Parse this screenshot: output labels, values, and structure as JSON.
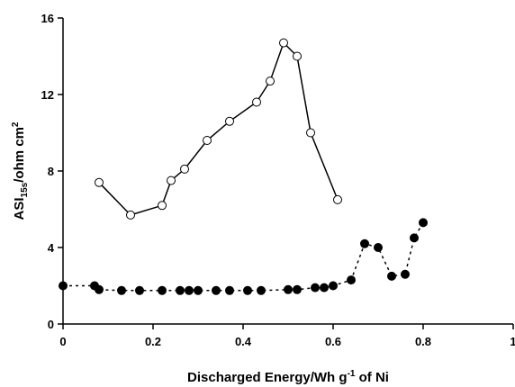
{
  "chart_data": {
    "type": "line",
    "xlabel": {
      "prefix": "Discharged Energy/Wh g",
      "superscript": "-1",
      "suffix": " of Ni"
    },
    "ylabel": {
      "prefix": "ASI",
      "subscript": "15s",
      "middle": "/ohm cm",
      "superscript": "2"
    },
    "xlim": [
      0,
      1
    ],
    "ylim": [
      0,
      16
    ],
    "x_ticks": [
      0,
      0.2,
      0.4,
      0.6,
      0.8,
      1
    ],
    "x_tick_labels": [
      "0",
      "0.2",
      "0.4",
      "0.6",
      "0.8",
      "1"
    ],
    "y_ticks": [
      0,
      4,
      8,
      12,
      16
    ],
    "y_tick_labels": [
      "0",
      "4",
      "8",
      "12",
      "16"
    ],
    "grid": false,
    "series": [
      {
        "marker": "open-circle",
        "line": "solid",
        "x": [
          0.08,
          0.15,
          0.22,
          0.24,
          0.27,
          0.32,
          0.37,
          0.43,
          0.46,
          0.49,
          0.52,
          0.55,
          0.61
        ],
        "y": [
          7.4,
          5.7,
          6.2,
          7.5,
          8.1,
          9.6,
          10.6,
          11.6,
          12.7,
          14.7,
          14.0,
          10.0,
          6.5
        ]
      },
      {
        "marker": "filled-circle",
        "line": "dashed",
        "x": [
          0,
          0.07,
          0.08,
          0.13,
          0.17,
          0.22,
          0.26,
          0.28,
          0.3,
          0.34,
          0.37,
          0.41,
          0.44,
          0.5,
          0.52,
          0.56,
          0.58,
          0.6,
          0.64,
          0.67,
          0.7,
          0.73,
          0.76,
          0.78,
          0.8
        ],
        "y": [
          2.0,
          2.0,
          1.8,
          1.75,
          1.75,
          1.75,
          1.75,
          1.75,
          1.75,
          1.75,
          1.75,
          1.75,
          1.75,
          1.8,
          1.8,
          1.9,
          1.9,
          2.0,
          2.3,
          4.2,
          4.0,
          2.5,
          2.6,
          4.5,
          5.3
        ]
      }
    ]
  }
}
